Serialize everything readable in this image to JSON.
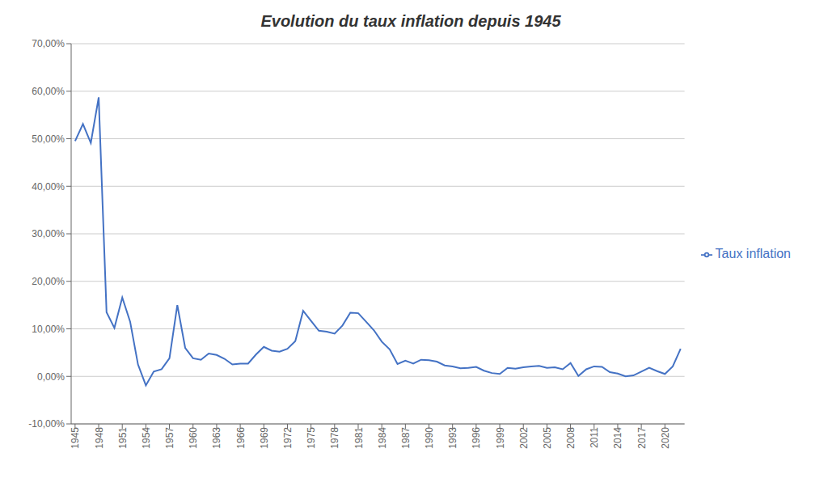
{
  "chart_data": {
    "type": "line",
    "title": "Evolution du taux inflation depuis 1945",
    "x": [
      1945,
      1946,
      1947,
      1948,
      1949,
      1950,
      1951,
      1952,
      1953,
      1954,
      1955,
      1956,
      1957,
      1958,
      1959,
      1960,
      1961,
      1962,
      1963,
      1964,
      1965,
      1966,
      1967,
      1968,
      1969,
      1970,
      1971,
      1972,
      1973,
      1974,
      1975,
      1976,
      1977,
      1978,
      1979,
      1980,
      1981,
      1982,
      1983,
      1984,
      1985,
      1986,
      1987,
      1988,
      1989,
      1990,
      1991,
      1992,
      1993,
      1994,
      1995,
      1996,
      1997,
      1998,
      1999,
      2000,
      2001,
      2002,
      2003,
      2004,
      2005,
      2006,
      2007,
      2008,
      2009,
      2010,
      2011,
      2012,
      2013,
      2014,
      2015,
      2016,
      2017,
      2018,
      2019,
      2020,
      2021,
      2022
    ],
    "series": [
      {
        "name": "Taux inflation",
        "color": "#4472C4",
        "values": [
          0.495,
          0.531,
          0.491,
          0.587,
          0.135,
          0.102,
          0.166,
          0.115,
          0.025,
          -0.019,
          0.01,
          0.015,
          0.038,
          0.15,
          0.06,
          0.038,
          0.035,
          0.048,
          0.045,
          0.037,
          0.025,
          0.027,
          0.027,
          0.046,
          0.062,
          0.054,
          0.052,
          0.058,
          0.074,
          0.138,
          0.117,
          0.096,
          0.094,
          0.09,
          0.107,
          0.134,
          0.133,
          0.115,
          0.097,
          0.073,
          0.057,
          0.026,
          0.033,
          0.027,
          0.035,
          0.034,
          0.031,
          0.023,
          0.021,
          0.017,
          0.018,
          0.02,
          0.012,
          0.007,
          0.005,
          0.018,
          0.016,
          0.019,
          0.021,
          0.022,
          0.018,
          0.019,
          0.015,
          0.028,
          0.001,
          0.015,
          0.021,
          0.02,
          0.009,
          0.006,
          0.0,
          0.002,
          0.01,
          0.018,
          0.011,
          0.005,
          0.021,
          0.058
        ]
      }
    ],
    "xlim": [
      1944.5,
      2022.5
    ],
    "xticks": [
      1945,
      1948,
      1951,
      1954,
      1957,
      1960,
      1963,
      1966,
      1969,
      1972,
      1975,
      1978,
      1981,
      1984,
      1987,
      1990,
      1993,
      1996,
      1999,
      2002,
      2005,
      2008,
      2011,
      2014,
      2017,
      2020
    ],
    "ylim": [
      -0.1,
      0.7
    ],
    "yticks": [
      {
        "value": -0.1,
        "label": "-10,00%"
      },
      {
        "value": 0.0,
        "label": "0,00%"
      },
      {
        "value": 0.1,
        "label": "10,00%"
      },
      {
        "value": 0.2,
        "label": "20,00%"
      },
      {
        "value": 0.3,
        "label": "30,00%"
      },
      {
        "value": 0.4,
        "label": "40,00%"
      },
      {
        "value": 0.5,
        "label": "50,00%"
      },
      {
        "value": 0.6,
        "label": "60,00%"
      },
      {
        "value": 0.7,
        "label": "70,00%"
      }
    ],
    "grid": "y",
    "legend": "right"
  }
}
